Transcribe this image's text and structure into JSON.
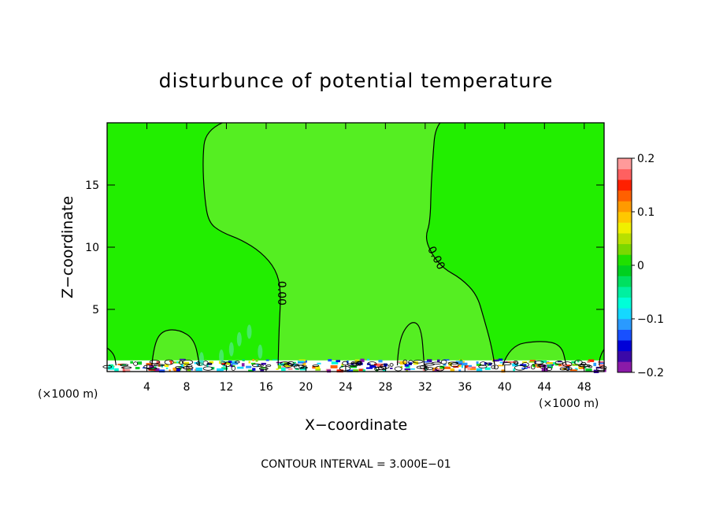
{
  "chart_data": {
    "type": "heatmap",
    "title": "disturbunce of potential temperature",
    "xlabel": "X−coordinate",
    "ylabel": "Z−coordinate",
    "x_unit": "(×1000 m)",
    "y_unit": "(×1000 m)",
    "xlim": [
      0,
      50
    ],
    "ylim": [
      0,
      20
    ],
    "x_ticks": [
      4,
      8,
      12,
      16,
      20,
      24,
      28,
      32,
      36,
      40,
      44,
      48
    ],
    "y_ticks": [
      5,
      10,
      15
    ],
    "contour_labels": [
      {
        "text": "0.00",
        "x": 17.2,
        "z": 6.3
      },
      {
        "text": "0.00",
        "x": 32.8,
        "z": 9.0
      }
    ],
    "contour_interval": "CONTOUR INTERVAL = 3.000E−01",
    "colorbar": {
      "min": -0.2,
      "max": 0.2,
      "tick_values": [
        -0.2,
        -0.1,
        0,
        0.1,
        0.2
      ],
      "tick_labels": [
        "−0.2",
        "−0.1",
        "0",
        "0.1",
        "0.2"
      ],
      "colors": [
        "#8a1aa8",
        "#3a08a8",
        "#0000d8",
        "#1850ff",
        "#2a9aff",
        "#15d8ff",
        "#00ffd8",
        "#00f0a0",
        "#00e060",
        "#00d020",
        "#20e000",
        "#7ad800",
        "#b8e000",
        "#f0f000",
        "#ffc800",
        "#ff9a00",
        "#ff6000",
        "#ff2000",
        "#ff6060",
        "#ff9a9a"
      ]
    },
    "field_colors": {
      "ambient": "#22ee00",
      "enclosed": "#55ee22"
    }
  }
}
